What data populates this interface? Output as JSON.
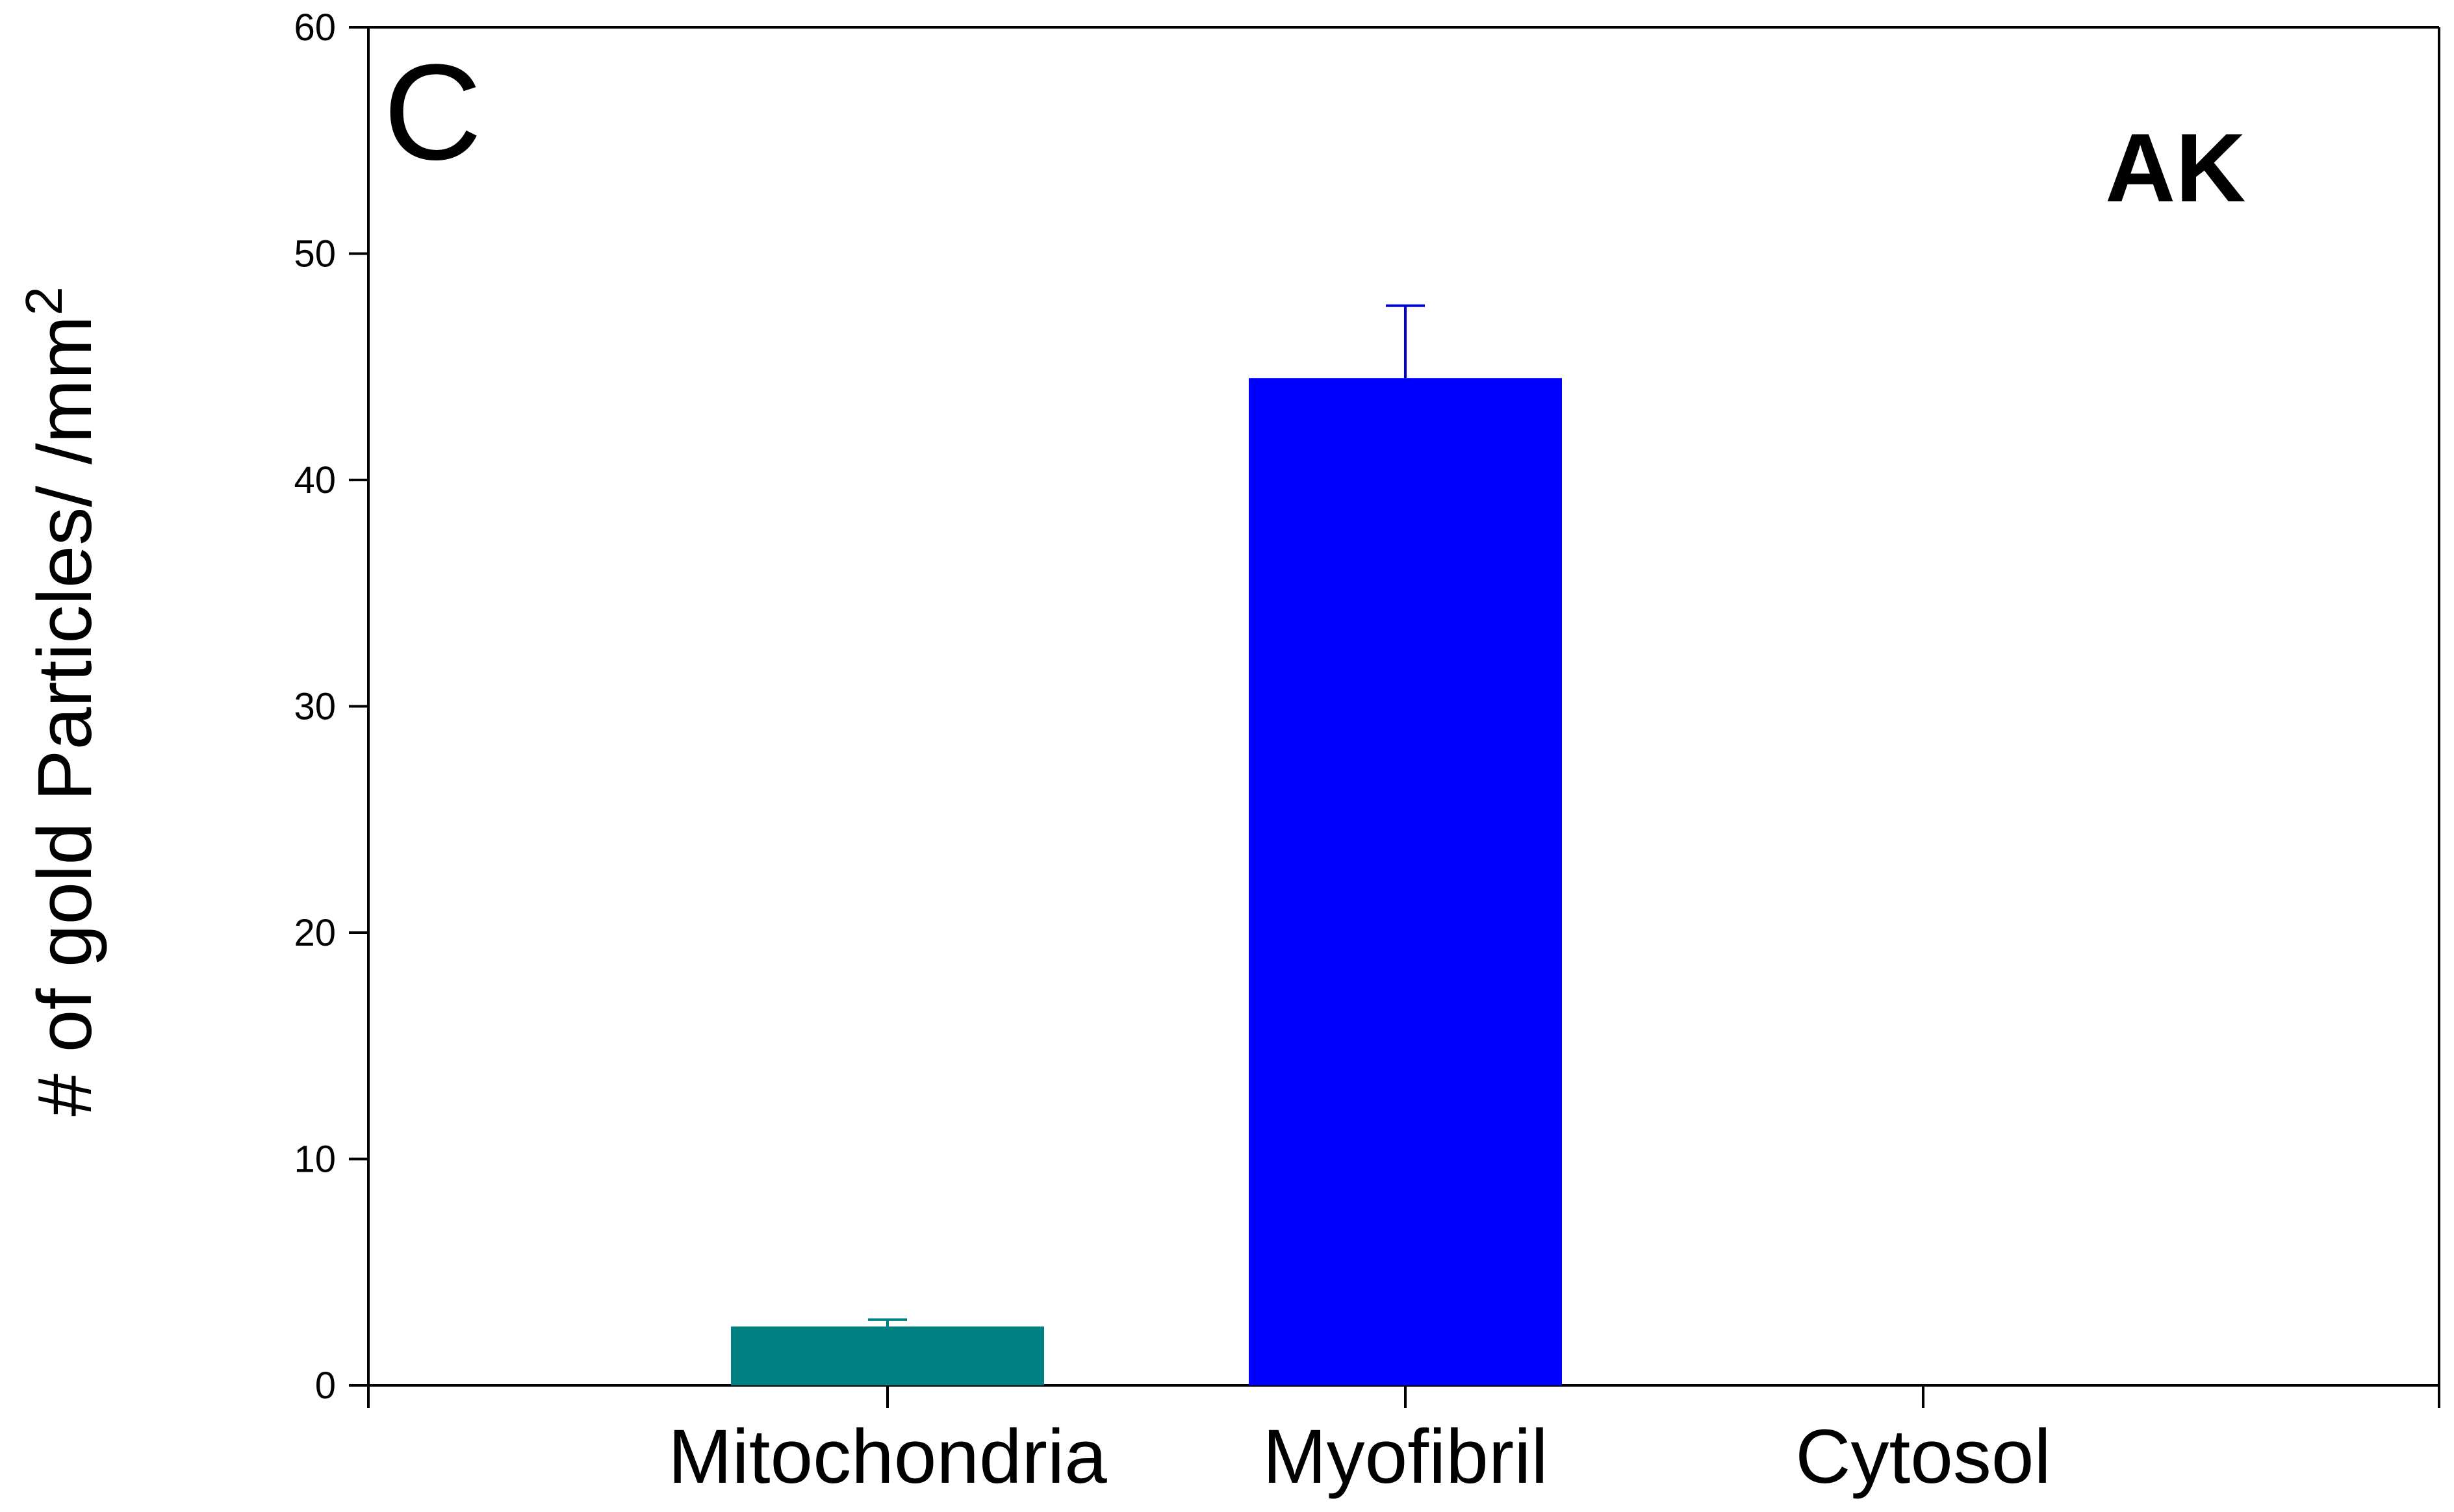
{
  "chart_data": {
    "type": "bar",
    "panel_label": "C",
    "annotation": "AK",
    "ylabel": "# of gold Particles/ /mm",
    "ylabel_superscript": "2",
    "ylim": [
      0,
      60
    ],
    "yticks": [
      0,
      10,
      20,
      30,
      40,
      50,
      60
    ],
    "categories": [
      "Mitochondria",
      "Myofibril",
      "Cytosol"
    ],
    "values": [
      2.6,
      44.5,
      0
    ],
    "errors": [
      0.3,
      3.2,
      0
    ],
    "colors": [
      "#008080",
      "#0000FF",
      "#FFFFFF"
    ],
    "error_colors": [
      "#008080",
      "#0000CC",
      "#000000"
    ],
    "grid": false,
    "legend": "none"
  }
}
